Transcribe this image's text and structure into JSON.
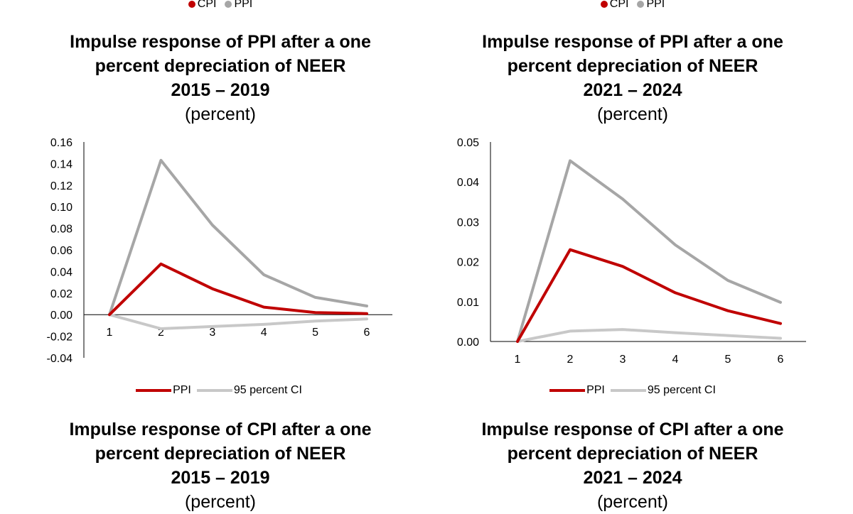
{
  "top_legends": [
    {
      "items": [
        {
          "label": "CPI",
          "color": "#c00000"
        },
        {
          "label": "PPI",
          "color": "#a6a6a6"
        }
      ]
    },
    {
      "items": [
        {
          "label": "CPI",
          "color": "#c00000"
        },
        {
          "label": "PPI",
          "color": "#a6a6a6"
        }
      ]
    }
  ],
  "panels": [
    {
      "title_line1": "Impulse response of PPI after a one",
      "title_line2": "percent depreciation of NEER",
      "period": "2015 – 2019",
      "unit": "(percent)"
    },
    {
      "title_line1": "Impulse response of PPI after a one",
      "title_line2": "percent depreciation of NEER",
      "period": "2021 – 2024",
      "unit": "(percent)"
    },
    {
      "title_line1": "Impulse response of CPI after a one",
      "title_line2": "percent depreciation of NEER",
      "period": "2015 – 2019",
      "unit": "(percent)"
    },
    {
      "title_line1": "Impulse response of CPI after a one",
      "title_line2": "percent depreciation of NEER",
      "period": "2021 – 2024",
      "unit": "(percent)"
    }
  ],
  "chart_data": [
    {
      "type": "line",
      "x": [
        1,
        2,
        3,
        4,
        5,
        6
      ],
      "ylim": [
        -0.04,
        0.16
      ],
      "yticks": [
        "0.16",
        "0.14",
        "0.12",
        "0.10",
        "0.08",
        "0.06",
        "0.04",
        "0.02",
        "0.00",
        "-0.02",
        "-0.04"
      ],
      "series": [
        {
          "name": "PPI",
          "color": "#c00000",
          "values": [
            0.0,
            0.047,
            0.024,
            0.007,
            0.002,
            0.001
          ]
        },
        {
          "name": "95 percent CI",
          "color": "#a6a6a6",
          "values": [
            0.0,
            0.143,
            0.083,
            0.037,
            0.016,
            0.008
          ]
        },
        {
          "name": "95 percent CI",
          "color": "#c8c8c8",
          "values": [
            0.0,
            -0.013,
            -0.011,
            -0.009,
            -0.006,
            -0.004
          ]
        }
      ],
      "legend": [
        {
          "label": "PPI",
          "color": "#c00000"
        },
        {
          "label": "95 percent CI",
          "color": "#c8c8c8"
        }
      ]
    },
    {
      "type": "line",
      "x": [
        1,
        2,
        3,
        4,
        5,
        6
      ],
      "ylim": [
        0.0,
        0.05
      ],
      "yticks": [
        "0.05",
        "0.04",
        "0.03",
        "0.02",
        "0.01",
        "0.00"
      ],
      "series": [
        {
          "name": "PPI",
          "color": "#c00000",
          "values": [
            0.0,
            0.023,
            0.0188,
            0.0122,
            0.0077,
            0.0045
          ]
        },
        {
          "name": "95 percent CI",
          "color": "#a6a6a6",
          "values": [
            0.0,
            0.0453,
            0.0357,
            0.0242,
            0.0153,
            0.0098
          ]
        },
        {
          "name": "95 percent CI",
          "color": "#c8c8c8",
          "values": [
            0.0,
            0.0026,
            0.003,
            0.0022,
            0.0015,
            0.0008
          ]
        }
      ],
      "legend": [
        {
          "label": "PPI",
          "color": "#c00000"
        },
        {
          "label": "95 percent CI",
          "color": "#c8c8c8"
        }
      ]
    }
  ]
}
